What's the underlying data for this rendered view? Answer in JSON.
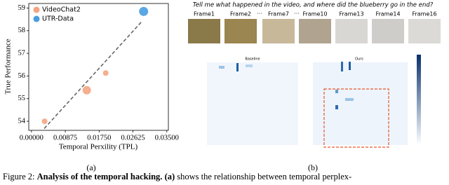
{
  "chart_data": {
    "type": "scatter",
    "x_label": "Temporal Perxility (TPL)",
    "y_label": "True Performance",
    "xlim": [
      -0.0007,
      0.0354
    ],
    "ylim": [
      53.6,
      59.2
    ],
    "xticks": [
      {
        "value": 0,
        "label": "0.00000"
      },
      {
        "value": 0.00875,
        "label": "0.00875"
      },
      {
        "value": 0.0175,
        "label": "0.01750"
      },
      {
        "value": 0.02625,
        "label": "0.02625"
      },
      {
        "value": 0.035,
        "label": "0.03500"
      }
    ],
    "yticks": [
      54,
      55,
      56,
      57,
      58,
      59
    ],
    "series": [
      {
        "name": "VideoChat2",
        "color": "#f4a582",
        "x": [
          0.0034,
          0.0143,
          0.0192
        ],
        "values": [
          54.0,
          55.37,
          56.13
        ],
        "sizes": [
          4,
          6,
          4
        ]
      },
      {
        "name": "UTR-Data",
        "color": "#4a9de0",
        "x": [
          0.029
        ],
        "values": [
          58.85
        ],
        "sizes": [
          6.5
        ]
      }
    ],
    "trend_line": {
      "x": [
        0.0033,
        0.0285
      ],
      "values": [
        53.68,
        58.4
      ],
      "color": "#666666"
    },
    "legend": "upper left",
    "panel_label": "(a)"
  },
  "right_panel": {
    "question": "Tell me what happened in the video, and where did the blueberry go in the end?",
    "frames": [
      "Frame1",
      "Frame2",
      "Frame7",
      "Frame10",
      "Frame13",
      "Frame14",
      "Frame16"
    ],
    "separator": "···",
    "heatmap_titles": [
      "Baseline",
      "Ours"
    ],
    "panel_label": "(b)"
  },
  "caption": {
    "label": "Figure 2:",
    "bold": "Analysis of the temporal hacking.",
    "bold2": "(a)",
    "rest": "shows the relationship between temporal perplex-"
  }
}
